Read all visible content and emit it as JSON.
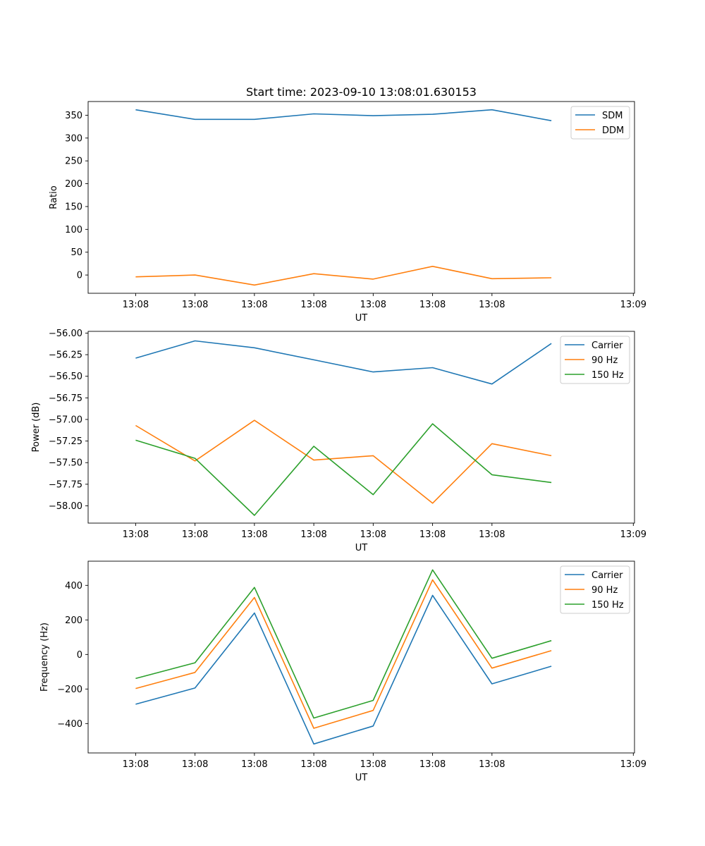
{
  "chart_data": [
    {
      "type": "line",
      "title": "Start time: 2023-09-10 13:08:01.630153",
      "xlabel": "UT",
      "ylabel": "Ratio",
      "x": [
        1,
        2,
        3,
        4,
        5,
        6,
        7,
        8
      ],
      "x_tick_labels": [
        "13:08",
        "13:08",
        "13:08",
        "13:08",
        "13:08",
        "13:08",
        "13:08"
      ],
      "x_end_tick_label": "13:09",
      "xlim": [
        0.2,
        9.4
      ],
      "ylim": [
        -40,
        380
      ],
      "y_ticks": [
        0,
        50,
        100,
        150,
        200,
        250,
        300,
        350
      ],
      "y_tick_labels": [
        "0",
        "50",
        "100",
        "150",
        "200",
        "250",
        "300",
        "350"
      ],
      "series": [
        {
          "name": "SDM",
          "color": "#1f77b4",
          "values": [
            362,
            341,
            341,
            353,
            349,
            352,
            362,
            338
          ]
        },
        {
          "name": "DDM",
          "color": "#ff7f0e",
          "values": [
            -4,
            0,
            -22,
            3,
            -9,
            19,
            -8,
            -6
          ]
        }
      ],
      "legend": "top-right"
    },
    {
      "type": "line",
      "xlabel": "UT",
      "ylabel": "Power (dB)",
      "x": [
        1,
        2,
        3,
        4,
        5,
        6,
        7,
        8
      ],
      "x_tick_labels": [
        "13:08",
        "13:08",
        "13:08",
        "13:08",
        "13:08",
        "13:08",
        "13:08"
      ],
      "x_end_tick_label": "13:09",
      "xlim": [
        0.2,
        9.4
      ],
      "ylim": [
        -58.2,
        -55.98
      ],
      "y_ticks": [
        -58.0,
        -57.75,
        -57.5,
        -57.25,
        -57.0,
        -56.75,
        -56.5,
        -56.25,
        -56.0
      ],
      "y_tick_labels": [
        "−58.00",
        "−57.75",
        "−57.50",
        "−57.25",
        "−57.00",
        "−56.75",
        "−56.50",
        "−56.25",
        "−56.00"
      ],
      "series": [
        {
          "name": "Carrier",
          "color": "#1f77b4",
          "values": [
            -56.29,
            -56.09,
            -56.17,
            -56.31,
            -56.45,
            -56.4,
            -56.59,
            -56.12
          ]
        },
        {
          "name": "90 Hz",
          "color": "#ff7f0e",
          "values": [
            -57.07,
            -57.48,
            -57.01,
            -57.47,
            -57.42,
            -57.97,
            -57.28,
            -57.42
          ]
        },
        {
          "name": "150 Hz",
          "color": "#2ca02c",
          "values": [
            -57.24,
            -57.45,
            -58.11,
            -57.31,
            -57.87,
            -57.05,
            -57.64,
            -57.73
          ]
        }
      ],
      "legend": "top-right"
    },
    {
      "type": "line",
      "xlabel": "UT",
      "ylabel": "Frequency (Hz)",
      "x": [
        1,
        2,
        3,
        4,
        5,
        6,
        7,
        8
      ],
      "x_tick_labels": [
        "13:08",
        "13:08",
        "13:08",
        "13:08",
        "13:08",
        "13:08",
        "13:08"
      ],
      "x_end_tick_label": "13:09",
      "xlim": [
        0.2,
        9.4
      ],
      "ylim": [
        -570,
        540
      ],
      "y_ticks": [
        -400,
        -200,
        0,
        200,
        400
      ],
      "y_tick_labels": [
        "−400",
        "−200",
        "0",
        "200",
        "400"
      ],
      "series": [
        {
          "name": "Carrier",
          "color": "#1f77b4",
          "values": [
            -288,
            -194,
            240,
            -518,
            -414,
            342,
            -170,
            -68
          ]
        },
        {
          "name": "90 Hz",
          "color": "#ff7f0e",
          "values": [
            -197,
            -104,
            330,
            -427,
            -324,
            432,
            -79,
            22
          ]
        },
        {
          "name": "150 Hz",
          "color": "#2ca02c",
          "values": [
            -139,
            -48,
            388,
            -368,
            -266,
            490,
            -22,
            80
          ]
        }
      ],
      "legend": "top-right"
    }
  ]
}
